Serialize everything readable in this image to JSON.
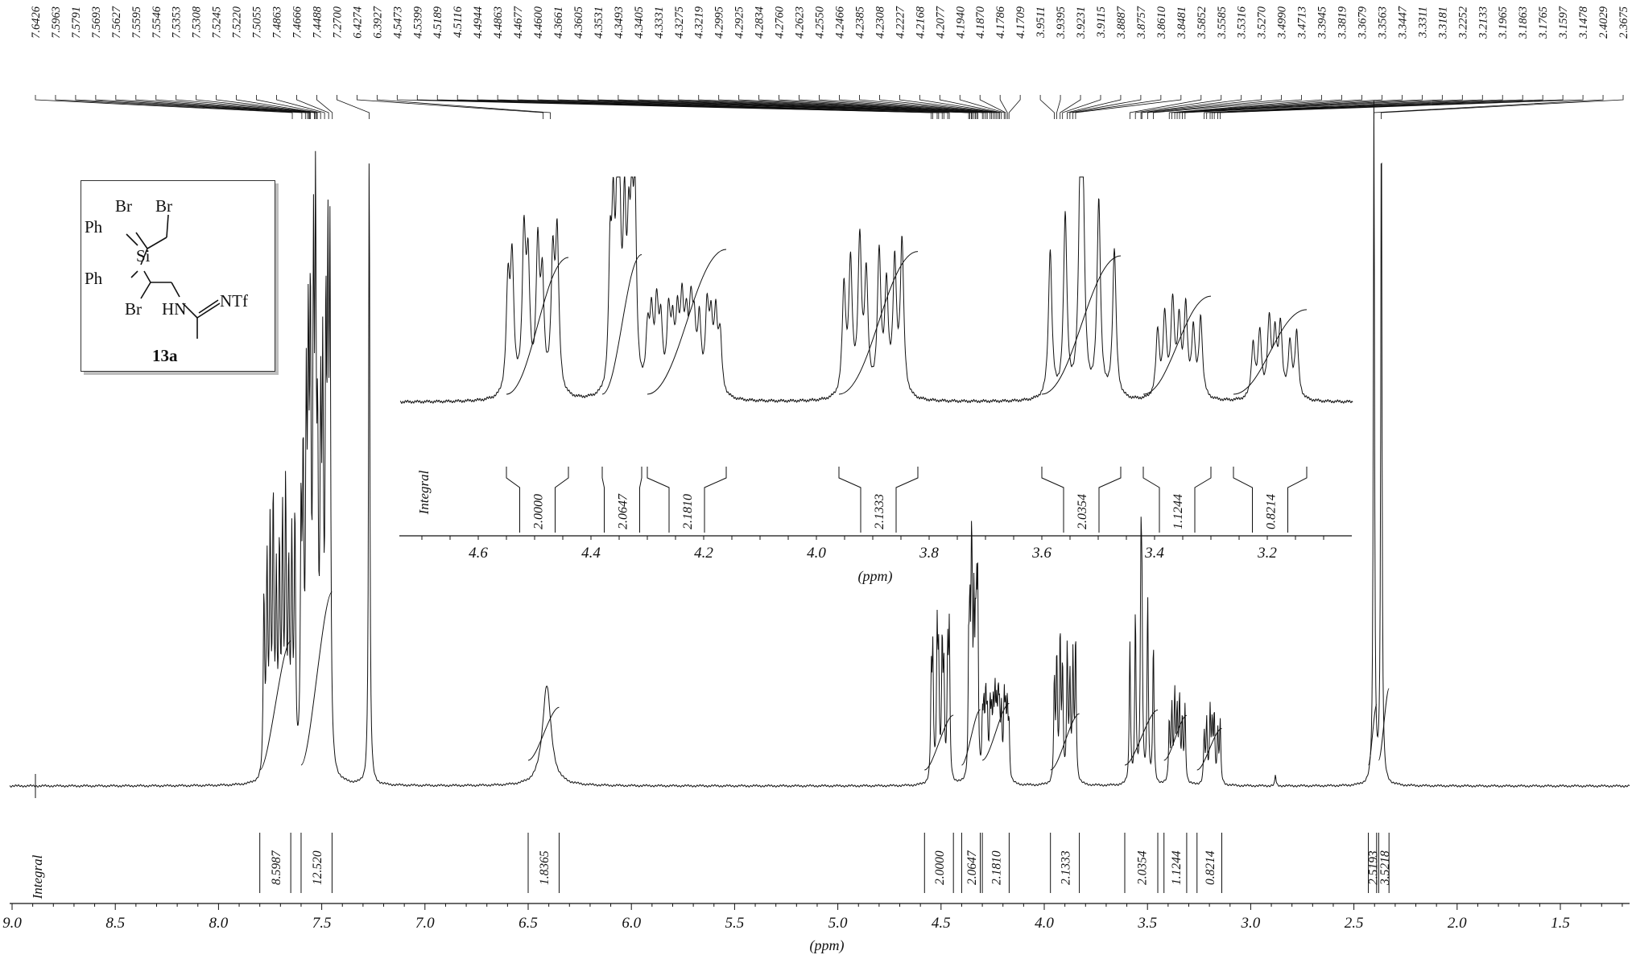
{
  "chart_data": {
    "type": "line",
    "spectrum": "1H NMR",
    "xlabel": "(ppm)",
    "xlim": [
      9.0,
      1.2
    ],
    "x_ticks": [
      "9.0",
      "8.5",
      "8.0",
      "7.5",
      "7.0",
      "6.5",
      "6.0",
      "5.5",
      "5.0",
      "4.5",
      "4.0",
      "3.5",
      "3.0",
      "2.5",
      "2.0",
      "1.5"
    ],
    "peak_labels": [
      "7.6426",
      "7.5963",
      "7.5791",
      "7.5693",
      "7.5627",
      "7.5595",
      "7.5546",
      "7.5353",
      "7.5308",
      "7.5245",
      "7.5220",
      "7.5055",
      "7.4863",
      "7.4666",
      "7.4488",
      "7.2700",
      "6.4274",
      "6.3927",
      "4.5473",
      "4.5399",
      "4.5189",
      "4.5116",
      "4.4944",
      "4.4863",
      "4.4677",
      "4.4600",
      "4.3661",
      "4.3605",
      "4.3531",
      "4.3493",
      "4.3405",
      "4.3331",
      "4.3275",
      "4.3219",
      "4.2995",
      "4.2925",
      "4.2834",
      "4.2760",
      "4.2623",
      "4.2550",
      "4.2466",
      "4.2385",
      "4.2308",
      "4.2227",
      "4.2168",
      "4.2077",
      "4.1940",
      "4.1870",
      "4.1786",
      "4.1709",
      "3.9511",
      "3.9395",
      "3.9231",
      "3.9115",
      "3.8887",
      "3.8757",
      "3.8610",
      "3.8481",
      "3.5852",
      "3.5585",
      "3.5316",
      "3.5270",
      "3.4990",
      "3.4713",
      "3.3945",
      "3.3819",
      "3.3679",
      "3.3563",
      "3.3447",
      "3.3311",
      "3.3181",
      "3.2252",
      "3.2133",
      "3.1965",
      "3.1863",
      "3.1765",
      "3.1597",
      "3.1478",
      "2.4029",
      "2.3675"
    ],
    "integral_label": "Integral",
    "integrals": [
      {
        "from": 7.8,
        "to": 7.65,
        "value": "8.5987"
      },
      {
        "from": 7.6,
        "to": 7.45,
        "value": "12.520"
      },
      {
        "from": 6.5,
        "to": 6.35,
        "value": "1.8365"
      },
      {
        "from": 4.58,
        "to": 4.44,
        "value": "2.0000"
      },
      {
        "from": 4.4,
        "to": 4.31,
        "value": "2.0647"
      },
      {
        "from": 4.3,
        "to": 4.17,
        "value": "2.1810"
      },
      {
        "from": 3.97,
        "to": 3.83,
        "value": "2.1333"
      },
      {
        "from": 3.61,
        "to": 3.45,
        "value": "2.0354"
      },
      {
        "from": 3.42,
        "to": 3.31,
        "value": "1.1244"
      },
      {
        "from": 3.26,
        "to": 3.14,
        "value": "0.8214"
      },
      {
        "from": 2.43,
        "to": 2.39,
        "value": "2.5193"
      },
      {
        "from": 2.38,
        "to": 2.33,
        "value": "3.5218"
      }
    ],
    "inset": {
      "xlabel": "(ppm)",
      "xlim": [
        4.74,
        3.05
      ],
      "x_ticks": [
        "4.6",
        "4.4",
        "4.2",
        "4.0",
        "3.8",
        "3.6",
        "3.4",
        "3.2"
      ],
      "integral_label": "Integral",
      "integrals": [
        {
          "from": 4.55,
          "to": 4.44,
          "value": "2.0000"
        },
        {
          "from": 4.38,
          "to": 4.31,
          "value": "2.0647"
        },
        {
          "from": 4.3,
          "to": 4.16,
          "value": "2.1810"
        },
        {
          "from": 3.96,
          "to": 3.82,
          "value": "2.1333"
        },
        {
          "from": 3.6,
          "to": 3.46,
          "value": "2.0354"
        },
        {
          "from": 3.42,
          "to": 3.3,
          "value": "1.1244"
        },
        {
          "from": 3.26,
          "to": 3.13,
          "value": "0.8214"
        }
      ]
    }
  },
  "structure": {
    "atoms": {
      "br1": "Br",
      "br2": "Br",
      "br3": "Br",
      "ph1": "Ph",
      "ph2": "Ph",
      "si": "Si",
      "hn": "HN",
      "ntf": "NTf"
    },
    "compound_label": "13a"
  }
}
